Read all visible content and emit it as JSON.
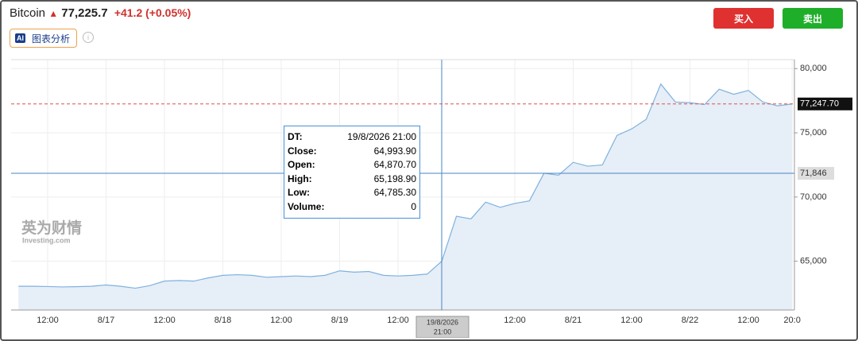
{
  "header": {
    "title": "Bitcoin",
    "price": "77,225.7",
    "change": "+41.2 (+0.05%)",
    "ai_badge": "AI",
    "ai_button": "图表分析",
    "buy": "买入",
    "sell": "卖出"
  },
  "chart_data": {
    "type": "area",
    "categories": [
      null,
      null,
      "12:00",
      null,
      null,
      null,
      "8/17",
      null,
      null,
      null,
      "12:00",
      null,
      null,
      null,
      "8/18",
      null,
      null,
      null,
      "12:00",
      null,
      null,
      null,
      "8/19",
      null,
      null,
      null,
      "12:00",
      null,
      null,
      null,
      null,
      null,
      null,
      null,
      "12:00",
      null,
      null,
      null,
      "8/21",
      null,
      null,
      null,
      "12:00",
      null,
      null,
      null,
      "8/22",
      null,
      null,
      null,
      "12:00",
      null,
      null,
      "20:0"
    ],
    "series": [
      {
        "color": "#7fb2df",
        "values": [
          63050,
          63050,
          63030,
          63000,
          63020,
          63050,
          63150,
          63050,
          62900,
          63100,
          63450,
          63500,
          63450,
          63700,
          63900,
          63950,
          63900,
          63750,
          63800,
          63850,
          63800,
          63900,
          64250,
          64150,
          64200,
          63900,
          63850,
          63900,
          64000,
          65000,
          68500,
          68300,
          69600,
          69200,
          69500,
          69700,
          71850,
          71700,
          72700,
          72400,
          72500,
          74800,
          75300,
          76050,
          78800,
          77400,
          77350,
          77200,
          78400,
          78000,
          78300,
          77400,
          77100,
          77248
        ]
      }
    ],
    "ylim": [
      61200,
      80700
    ],
    "yticks": [
      {
        "value": 65000,
        "label": "65,000"
      },
      {
        "value": 70000,
        "label": "70,000"
      },
      {
        "value": 75000,
        "label": "75,000"
      },
      {
        "value": 80000,
        "label": "80,000"
      }
    ],
    "grid": true,
    "last_price": {
      "value": 77247.7,
      "label": "77,247.70"
    },
    "crosshair": {
      "value": 71846,
      "label": "71,846",
      "x_label": [
        "19/8/2026",
        "21:00"
      ]
    },
    "tooltip": [
      [
        "DT:",
        "19/8/2026 21:00"
      ],
      [
        "Close:",
        "64,993.90"
      ],
      [
        "Open:",
        "64,870.70"
      ],
      [
        "High:",
        "65,198.90"
      ],
      [
        "Low:",
        "64,785.30"
      ],
      [
        "Volume:",
        "0"
      ]
    ],
    "watermark": [
      "英为财情",
      "Investing.com"
    ]
  }
}
